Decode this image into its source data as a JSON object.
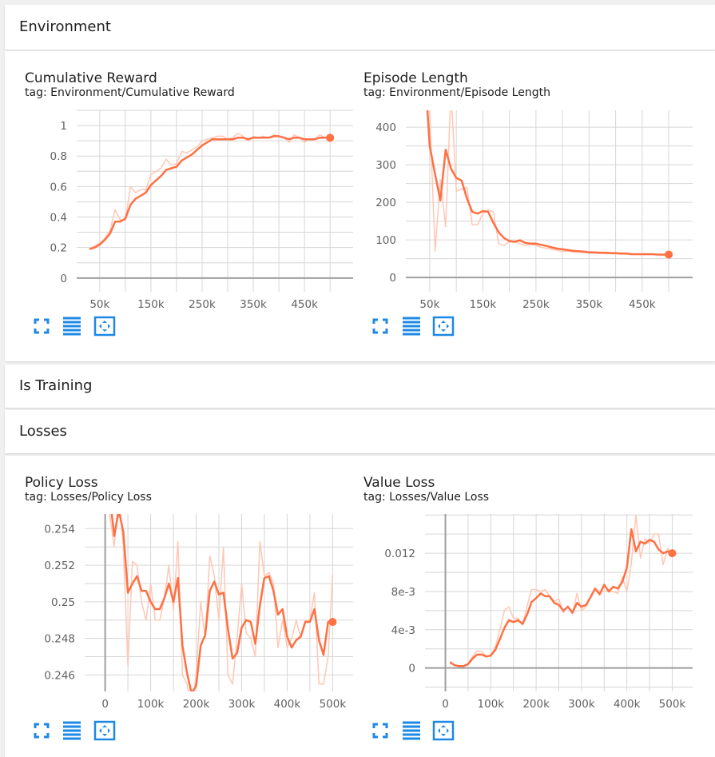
{
  "sections": {
    "environment": {
      "title": "Environment"
    },
    "is_training": {
      "title": "Is Training"
    },
    "losses": {
      "title": "Losses"
    }
  },
  "colors": {
    "smoothed": "#ff7043",
    "raw": "#ffc7b5",
    "icon": "#1e88e5",
    "grid": "#d6d6d6",
    "axis": "#9e9e9e"
  },
  "cards": [
    {
      "id": "cumulative_reward",
      "title": "Cumulative Reward",
      "tag": "tag: Environment/Cumulative Reward"
    },
    {
      "id": "episode_length",
      "title": "Episode Length",
      "tag": "tag: Environment/Episode Length"
    },
    {
      "id": "policy_loss",
      "title": "Policy Loss",
      "tag": "tag: Losses/Policy Loss"
    },
    {
      "id": "value_loss",
      "title": "Value Loss",
      "tag": "tag: Losses/Value Loss"
    }
  ],
  "card_buttons": [
    "fit-to-screen-icon",
    "toggle-log-scale-icon",
    "fit-domain-icon"
  ],
  "chart_data": [
    {
      "id": "cumulative_reward",
      "type": "line",
      "title": "Cumulative Reward",
      "xlim": [
        5000,
        545000
      ],
      "ylim": [
        -0.09,
        1.1
      ],
      "xticks": [
        50000,
        150000,
        250000,
        350000,
        450000
      ],
      "xtick_labels": [
        "50k",
        "150k",
        "250k",
        "350k",
        "450k"
      ],
      "yticks": [
        0,
        0.2,
        0.4,
        0.6,
        0.8,
        1
      ],
      "ytick_labels": [
        "0",
        "0.2",
        "0.4",
        "0.6",
        "0.8",
        "1"
      ],
      "zero_line": 0,
      "x": [
        30000,
        40000,
        50000,
        60000,
        70000,
        80000,
        90000,
        100000,
        110000,
        120000,
        130000,
        140000,
        150000,
        160000,
        170000,
        180000,
        190000,
        200000,
        210000,
        220000,
        230000,
        240000,
        250000,
        260000,
        270000,
        280000,
        290000,
        300000,
        310000,
        320000,
        330000,
        340000,
        350000,
        360000,
        370000,
        380000,
        390000,
        400000,
        410000,
        420000,
        430000,
        440000,
        450000,
        460000,
        470000,
        480000,
        490000,
        500000
      ],
      "series": [
        {
          "kind": "raw",
          "values": [
            0.19,
            0.21,
            0.23,
            0.26,
            0.31,
            0.45,
            0.38,
            0.38,
            0.6,
            0.56,
            0.58,
            0.58,
            0.68,
            0.7,
            0.72,
            0.78,
            0.74,
            0.75,
            0.83,
            0.82,
            0.84,
            0.86,
            0.9,
            0.91,
            0.92,
            0.93,
            0.93,
            0.91,
            0.92,
            0.95,
            0.93,
            0.9,
            0.93,
            0.92,
            0.93,
            0.92,
            0.94,
            0.93,
            0.92,
            0.89,
            0.94,
            0.92,
            0.89,
            0.91,
            0.91,
            0.94,
            0.92,
            0.92
          ]
        },
        {
          "kind": "smoothed",
          "values": [
            0.19,
            0.2,
            0.22,
            0.25,
            0.29,
            0.37,
            0.37,
            0.39,
            0.48,
            0.52,
            0.54,
            0.56,
            0.61,
            0.64,
            0.67,
            0.71,
            0.72,
            0.73,
            0.77,
            0.79,
            0.81,
            0.84,
            0.87,
            0.89,
            0.91,
            0.91,
            0.91,
            0.91,
            0.91,
            0.92,
            0.92,
            0.91,
            0.92,
            0.92,
            0.92,
            0.92,
            0.93,
            0.93,
            0.92,
            0.91,
            0.92,
            0.92,
            0.91,
            0.91,
            0.91,
            0.92,
            0.92,
            0.92
          ]
        }
      ]
    },
    {
      "id": "episode_length",
      "type": "line",
      "title": "Episode Length",
      "xlim": [
        5000,
        545000
      ],
      "ylim": [
        -38,
        445
      ],
      "xticks": [
        50000,
        150000,
        250000,
        350000,
        450000
      ],
      "xtick_labels": [
        "50k",
        "150k",
        "250k",
        "350k",
        "450k"
      ],
      "yticks": [
        0,
        100,
        200,
        300,
        400
      ],
      "ytick_labels": [
        "0",
        "100",
        "200",
        "300",
        "400"
      ],
      "zero_line": 0,
      "x": [
        45000,
        50000,
        60000,
        70000,
        80000,
        90000,
        100000,
        110000,
        120000,
        130000,
        140000,
        150000,
        160000,
        170000,
        180000,
        190000,
        200000,
        210000,
        220000,
        230000,
        240000,
        250000,
        260000,
        270000,
        280000,
        290000,
        300000,
        310000,
        320000,
        330000,
        340000,
        350000,
        360000,
        370000,
        380000,
        390000,
        400000,
        410000,
        420000,
        430000,
        440000,
        450000,
        460000,
        470000,
        480000,
        490000,
        500000
      ],
      "series": [
        {
          "kind": "raw",
          "values": [
            460,
            440,
            70,
            260,
            135,
            500,
            230,
            235,
            240,
            140,
            140,
            170,
            180,
            175,
            90,
            85,
            95,
            95,
            90,
            85,
            88,
            85,
            80,
            78,
            75,
            72,
            70,
            70,
            68,
            68,
            66,
            65,
            65,
            64,
            64,
            63,
            63,
            62,
            62,
            62,
            62,
            61,
            61,
            61,
            61,
            60,
            60
          ]
        },
        {
          "kind": "smoothed",
          "values": [
            460,
            350,
            275,
            205,
            340,
            290,
            265,
            258,
            210,
            175,
            170,
            177,
            175,
            145,
            120,
            105,
            97,
            95,
            99,
            92,
            90,
            90,
            87,
            84,
            80,
            77,
            75,
            73,
            71,
            70,
            69,
            67,
            67,
            66,
            66,
            65,
            65,
            64,
            64,
            62,
            62,
            62,
            62,
            62,
            61,
            61,
            61
          ]
        }
      ]
    },
    {
      "id": "policy_loss",
      "type": "line",
      "title": "Policy Loss",
      "xlim": [
        -45000,
        545000
      ],
      "ylim": [
        0.2451,
        0.2548
      ],
      "xticks": [
        0,
        100000,
        200000,
        300000,
        400000,
        500000
      ],
      "xtick_labels": [
        "0",
        "100k",
        "200k",
        "300k",
        "400k",
        "500k"
      ],
      "yticks": [
        0.246,
        0.248,
        0.25,
        0.252,
        0.254
      ],
      "ytick_labels": [
        "0.246",
        "0.248",
        "0.25",
        "0.252",
        "0.254"
      ],
      "x_zero_line": 0,
      "x": [
        10000,
        20000,
        30000,
        40000,
        50000,
        60000,
        70000,
        80000,
        90000,
        100000,
        110000,
        120000,
        130000,
        140000,
        150000,
        160000,
        170000,
        180000,
        190000,
        200000,
        210000,
        220000,
        230000,
        240000,
        250000,
        260000,
        270000,
        280000,
        290000,
        300000,
        310000,
        320000,
        330000,
        340000,
        350000,
        360000,
        370000,
        380000,
        390000,
        400000,
        410000,
        420000,
        430000,
        440000,
        450000,
        460000,
        470000,
        480000,
        490000,
        500000
      ],
      "series": [
        {
          "kind": "raw",
          "values": [
            0.2548,
            0.253,
            0.256,
            0.253,
            0.2465,
            0.2522,
            0.252,
            0.25,
            0.249,
            0.251,
            0.249,
            0.249,
            0.2502,
            0.252,
            0.2495,
            0.2533,
            0.246,
            0.2455,
            0.244,
            0.246,
            0.25,
            0.248,
            0.2525,
            0.2514,
            0.249,
            0.253,
            0.246,
            0.2455,
            0.248,
            0.251,
            0.2483,
            0.248,
            0.247,
            0.2533,
            0.2514,
            0.2516,
            0.251,
            0.2475,
            0.249,
            0.2475,
            0.248,
            0.249,
            0.248,
            0.249,
            0.249,
            0.2505,
            0.2455,
            0.2455,
            0.247,
            0.2515
          ]
        },
        {
          "kind": "smoothed",
          "values": [
            0.2558,
            0.2536,
            0.255,
            0.2538,
            0.2505,
            0.251,
            0.2514,
            0.2506,
            0.2506,
            0.25,
            0.2496,
            0.2496,
            0.2502,
            0.251,
            0.25,
            0.2513,
            0.2476,
            0.2461,
            0.245,
            0.2454,
            0.2476,
            0.2482,
            0.2506,
            0.2511,
            0.2504,
            0.2505,
            0.2485,
            0.2469,
            0.2472,
            0.2486,
            0.249,
            0.2489,
            0.2477,
            0.2498,
            0.2513,
            0.2514,
            0.2506,
            0.2493,
            0.2496,
            0.2481,
            0.2475,
            0.2479,
            0.2481,
            0.2489,
            0.2489,
            0.2496,
            0.2479,
            0.2471,
            0.2489,
            0.2489
          ]
        }
      ]
    },
    {
      "id": "value_loss",
      "type": "line",
      "title": "Value Loss",
      "xlim": [
        -45000,
        545000
      ],
      "ylim": [
        -0.00245,
        0.0161
      ],
      "xticks": [
        0,
        100000,
        200000,
        300000,
        400000,
        500000
      ],
      "xtick_labels": [
        "0",
        "100k",
        "200k",
        "300k",
        "400k",
        "500k"
      ],
      "yticks": [
        0,
        0.004,
        0.008,
        0.012
      ],
      "ytick_labels": [
        "0",
        "4e-3",
        "8e-3",
        "0.012"
      ],
      "zero_line": 0,
      "x_zero_line": 0,
      "x": [
        10000,
        20000,
        30000,
        40000,
        50000,
        60000,
        70000,
        80000,
        90000,
        100000,
        110000,
        120000,
        130000,
        140000,
        150000,
        160000,
        170000,
        180000,
        190000,
        200000,
        210000,
        220000,
        230000,
        240000,
        250000,
        260000,
        270000,
        280000,
        290000,
        300000,
        310000,
        320000,
        330000,
        340000,
        350000,
        360000,
        370000,
        380000,
        390000,
        400000,
        410000,
        420000,
        430000,
        440000,
        450000,
        460000,
        470000,
        480000,
        490000,
        500000
      ],
      "series": [
        {
          "kind": "raw",
          "values": [
            0.0007,
            0.0003,
            0.0002,
            0.0002,
            0.0005,
            0.0012,
            0.0018,
            0.0017,
            0.0012,
            0.0013,
            0.0022,
            0.004,
            0.006,
            0.0064,
            0.0052,
            0.0052,
            0.0045,
            0.0065,
            0.0082,
            0.0082,
            0.008,
            0.0082,
            0.0075,
            0.007,
            0.0072,
            0.0058,
            0.0065,
            0.0056,
            0.0078,
            0.006,
            0.0064,
            0.0074,
            0.0082,
            0.008,
            0.008,
            0.008,
            0.008,
            0.0078,
            0.0095,
            0.008,
            0.011,
            0.016,
            0.0115,
            0.0135,
            0.013,
            0.014,
            0.014,
            0.0108,
            0.0125,
            0.012
          ]
        },
        {
          "kind": "smoothed",
          "values": [
            0.0006,
            0.0003,
            0.0002,
            0.0002,
            0.0004,
            0.001,
            0.0014,
            0.0014,
            0.0012,
            0.0013,
            0.0019,
            0.003,
            0.0042,
            0.005,
            0.0048,
            0.005,
            0.0046,
            0.0056,
            0.0069,
            0.0073,
            0.0078,
            0.0075,
            0.0075,
            0.0068,
            0.0066,
            0.006,
            0.0064,
            0.0058,
            0.0068,
            0.0064,
            0.0066,
            0.0074,
            0.0083,
            0.0077,
            0.0087,
            0.008,
            0.0085,
            0.0083,
            0.009,
            0.0105,
            0.0145,
            0.0122,
            0.0132,
            0.013,
            0.0134,
            0.0132,
            0.0124,
            0.012,
            0.0122,
            0.012
          ]
        }
      ]
    }
  ]
}
